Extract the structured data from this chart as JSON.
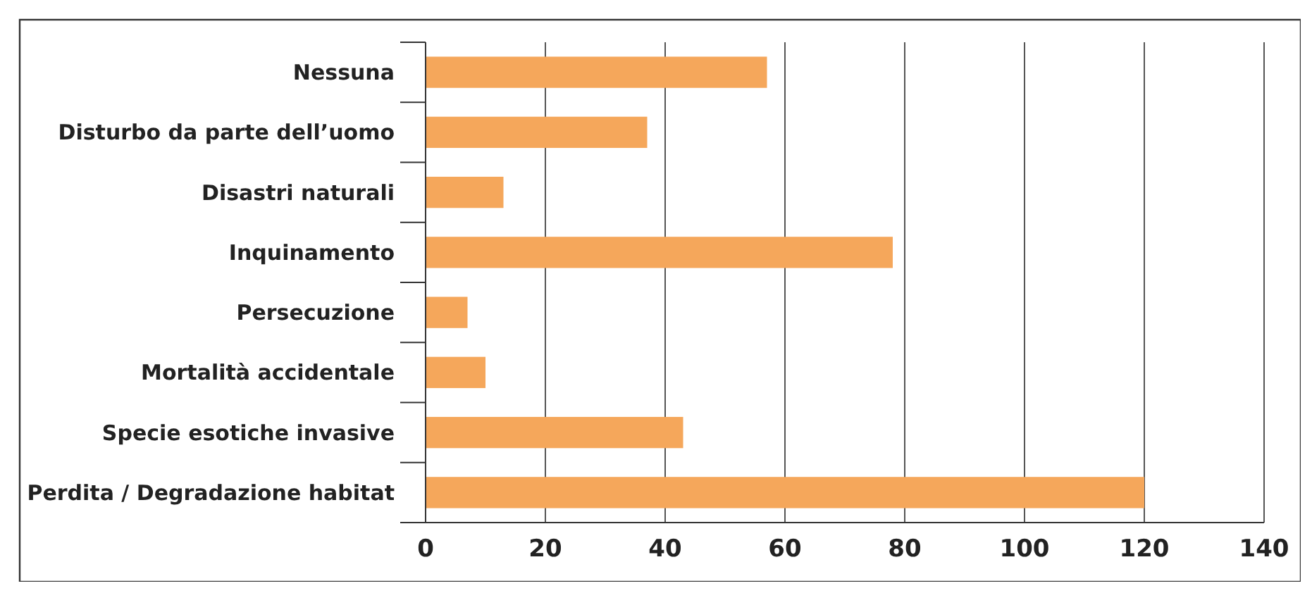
{
  "chart_data": {
    "type": "bar",
    "orientation": "horizontal",
    "categories": [
      "Nessuna",
      "Disturbo da parte dell’uomo",
      "Disastri naturali",
      "Inquinamento",
      "Persecuzione",
      "Mortalità accidentale",
      "Specie esotiche invasive",
      "Perdita / Degradazione habitat"
    ],
    "values": [
      57,
      37,
      13,
      78,
      7,
      10,
      43,
      120
    ],
    "color": "#f5a75b",
    "xlim": [
      0,
      140
    ],
    "xticks": [
      0,
      20,
      40,
      60,
      80,
      100,
      120,
      140
    ],
    "grid": "x"
  }
}
